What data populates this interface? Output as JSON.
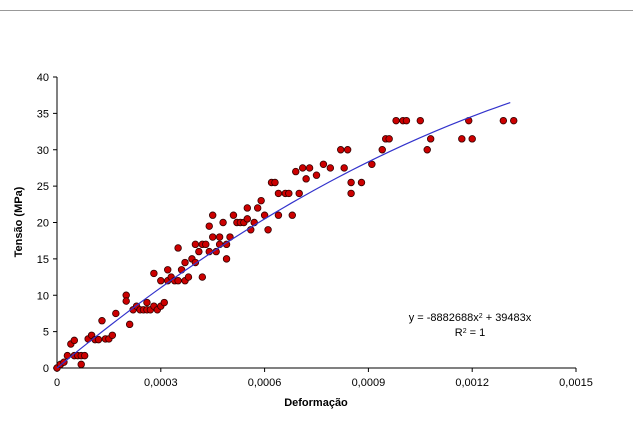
{
  "chart_data": {
    "type": "scatter",
    "x_label": "Deformação",
    "y_label": "Tensão (MPa)",
    "xlim": [
      0,
      0.0015
    ],
    "xticks": [
      0,
      {
        "value": 0.0003,
        "label": "0,0003"
      },
      {
        "value": 0.0006,
        "label": "0,0006"
      },
      {
        "value": 0.0009,
        "label": "0,0009"
      },
      {
        "value": 0.0012,
        "label": "0,0012"
      },
      {
        "value": 0.0015,
        "label": "0,0015"
      }
    ],
    "ylim": [
      0,
      40
    ],
    "yticks": [
      0,
      5,
      10,
      15,
      20,
      25,
      30,
      35,
      40
    ],
    "grid": false,
    "color": "#cc0000",
    "x": [
      0,
      1e-05,
      2e-05,
      3e-05,
      4e-05,
      5e-05,
      5e-05,
      6e-05,
      7e-05,
      7e-05,
      8e-05,
      9e-05,
      0.0001,
      0.00011,
      0.00012,
      0.00013,
      0.00014,
      0.00015,
      0.00016,
      0.00017,
      0.0002,
      0.0002,
      0.00021,
      0.00022,
      0.00023,
      0.00024,
      0.00025,
      0.00026,
      0.00026,
      0.00027,
      0.00028,
      0.00028,
      0.00029,
      0.0003,
      0.0003,
      0.00031,
      0.00032,
      0.00032,
      0.00033,
      0.00034,
      0.00035,
      0.00035,
      0.00036,
      0.00037,
      0.00037,
      0.00038,
      0.00039,
      0.0004,
      0.0004,
      0.00041,
      0.00042,
      0.00042,
      0.00043,
      0.00044,
      0.00044,
      0.00045,
      0.00045,
      0.00046,
      0.00047,
      0.00047,
      0.00048,
      0.00049,
      0.00049,
      0.0005,
      0.00051,
      0.00052,
      0.00053,
      0.00054,
      0.00055,
      0.00055,
      0.00056,
      0.00057,
      0.00058,
      0.00059,
      0.0006,
      0.00061,
      0.00062,
      0.00063,
      0.00064,
      0.00064,
      0.00066,
      0.00067,
      0.00068,
      0.00069,
      0.0007,
      0.00071,
      0.00072,
      0.00073,
      0.00075,
      0.00077,
      0.00079,
      0.00082,
      0.00083,
      0.00084,
      0.00085,
      0.00085,
      0.00088,
      0.00091,
      0.00094,
      0.00095,
      0.00096,
      0.00098,
      0.001,
      0.00101,
      0.00105,
      0.00107,
      0.00108,
      0.00117,
      0.00119,
      0.0012,
      0.00129,
      0.00132
    ],
    "values": [
      0,
      0.5,
      0.8,
      1.7,
      3.3,
      3.8,
      1.7,
      1.7,
      1.7,
      0.5,
      1.7,
      4,
      4.5,
      3.9,
      3.9,
      6.5,
      4,
      4,
      4.5,
      7.5,
      10,
      9.2,
      6,
      8,
      8.5,
      8,
      8,
      9,
      8,
      8,
      13,
      8.5,
      8,
      12,
      8.5,
      9,
      13.5,
      12,
      12.5,
      12,
      16.5,
      12,
      13.5,
      14.5,
      12,
      12.5,
      15,
      14.5,
      17,
      16,
      17,
      12.5,
      17,
      19.5,
      16,
      18,
      21,
      16,
      18,
      17,
      20,
      15,
      17,
      18,
      21,
      20,
      20,
      20,
      20.5,
      22,
      19,
      20,
      22,
      23,
      21,
      19,
      25.5,
      25.5,
      21,
      24,
      24,
      24,
      21,
      27,
      24,
      27.5,
      26,
      27.5,
      26.5,
      28,
      27.5,
      30,
      27.5,
      30,
      25.5,
      24,
      25.5,
      28,
      30,
      31.5,
      31.5,
      34,
      34,
      34,
      34,
      30,
      31.5,
      31.5,
      34,
      31.5,
      34,
      34
    ],
    "trendline": {
      "color": "#3333cc",
      "a": -8882688,
      "b": 39483,
      "x_end": 0.00131,
      "equation": [
        "y = -8882688x",
        "2",
        " + 39483x"
      ],
      "r2": [
        "R",
        "2",
        " = 1"
      ]
    }
  }
}
